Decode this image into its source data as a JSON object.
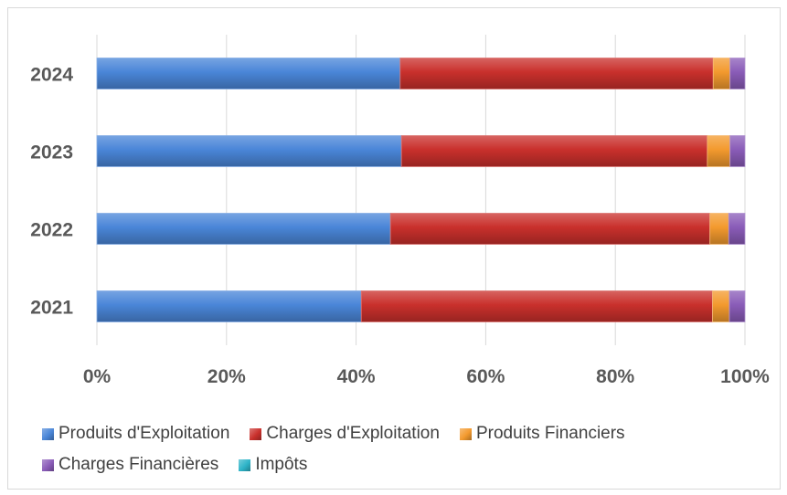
{
  "chart_data": {
    "type": "bar",
    "orientation": "horizontal",
    "stacked": "percent",
    "title": "",
    "xlabel": "",
    "ylabel": "",
    "categories": [
      "2021",
      "2022",
      "2023",
      "2024"
    ],
    "x_ticks": [
      "0%",
      "20%",
      "40%",
      "60%",
      "80%",
      "100%"
    ],
    "xlim": [
      0,
      100
    ],
    "grid": true,
    "legend_position": "bottom",
    "series": [
      {
        "name": "Produits d'Exploitation",
        "color": "#4a86d8",
        "values": [
          40.8,
          45.3,
          47.0,
          46.8
        ]
      },
      {
        "name": "Charges d'Exploitation",
        "color": "#c9302c",
        "values": [
          54.2,
          49.3,
          47.2,
          48.3
        ]
      },
      {
        "name": "Produits Financiers",
        "color": "#f39a2e",
        "values": [
          2.6,
          2.9,
          3.5,
          2.6
        ]
      },
      {
        "name": "Charges Financières",
        "color": "#8a5cb8",
        "values": [
          2.4,
          2.5,
          2.3,
          2.3
        ]
      },
      {
        "name": "Impôts",
        "color": "#2eb4c8",
        "values": [
          0,
          0,
          0,
          0
        ]
      }
    ]
  }
}
